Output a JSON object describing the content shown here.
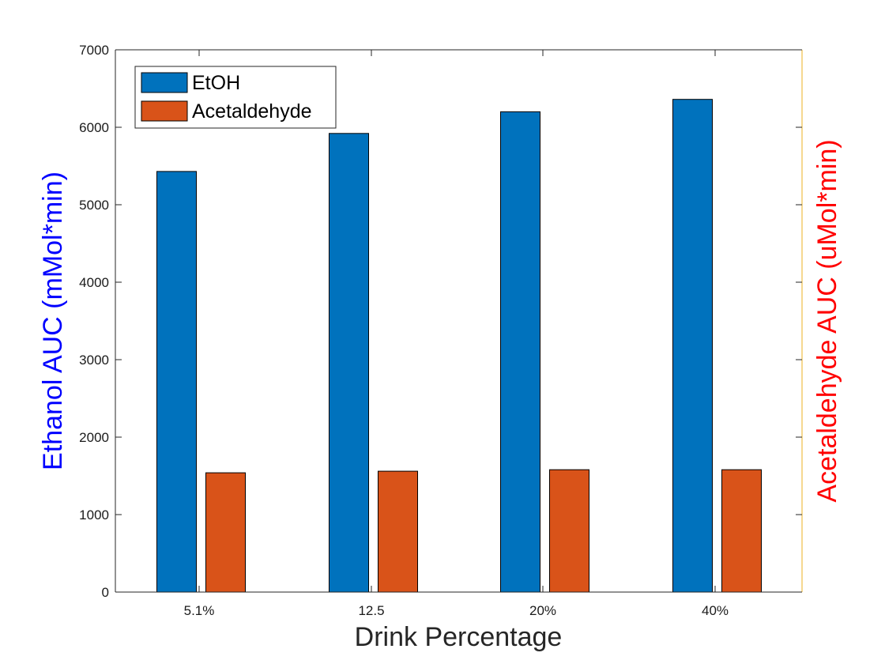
{
  "chart_data": {
    "type": "bar",
    "categories": [
      "5.1%",
      "12.5",
      "20%",
      "40%"
    ],
    "series": [
      {
        "name": "EtOH",
        "values": [
          5430,
          5920,
          6200,
          6360
        ],
        "color": "#0072BD"
      },
      {
        "name": "Acetaldehyde",
        "values": [
          1540,
          1560,
          1580,
          1580
        ],
        "color": "#D95319"
      }
    ],
    "xlabel": "Drink Percentage",
    "ylabel": "Ethanol AUC (mMol*min)",
    "ylabel_right": "Acetaldehyde AUC (uMol*min)",
    "ylim": [
      0,
      7000
    ],
    "yticks": [
      0,
      1000,
      2000,
      3000,
      4000,
      5000,
      6000,
      7000
    ],
    "grid": false,
    "legend_position": "top-left"
  },
  "colors": {
    "ylabel_left": "#0000FF",
    "ylabel_right": "#FF0000",
    "axis": "#262626",
    "right_axis": "#EDB120",
    "xlabel": "#262626"
  }
}
